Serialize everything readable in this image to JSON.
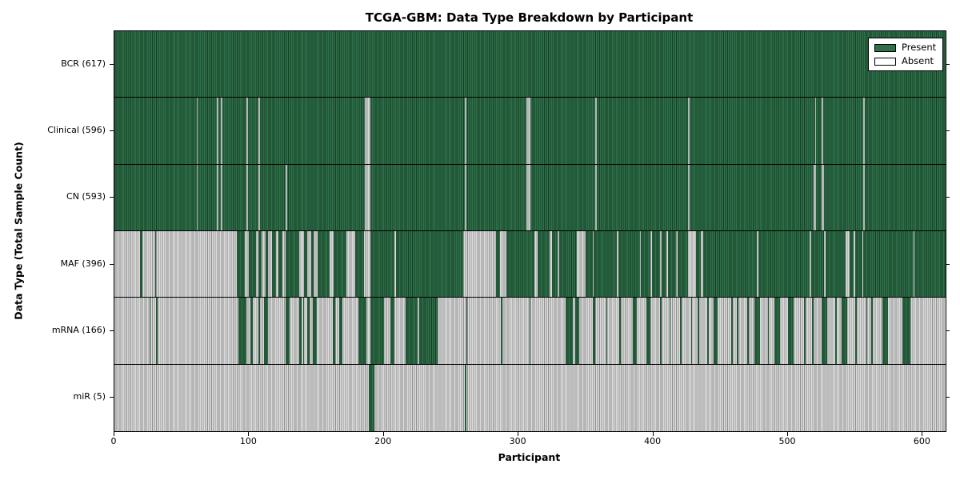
{
  "chart_data": {
    "type": "heatmap",
    "title": "TCGA-GBM: Data Type Breakdown by Participant",
    "xlabel": "Participant",
    "ylabel": "Data Type (Total Sample Count)",
    "xlim": [
      0,
      617
    ],
    "x_ticks": [
      0,
      100,
      200,
      300,
      400,
      500,
      600
    ],
    "grid": false,
    "legend": {
      "position": "upper-right",
      "entries": [
        {
          "label": "Present",
          "color": "#2e7049"
        },
        {
          "label": "Absent",
          "color": "#ffffff"
        }
      ]
    },
    "colors": {
      "present_fill": "#2e7049",
      "present_line": "#173f28",
      "absent_fill": "#dcdcdc",
      "absent_line": "#8f8f8f",
      "border": "#000000"
    },
    "rows": [
      {
        "label": "BCR (617)",
        "data_type": "BCR",
        "total_sample_count": 617,
        "base": "present",
        "opposite_segments": []
      },
      {
        "label": "Clinical (596)",
        "data_type": "Clinical",
        "total_sample_count": 596,
        "base": "present",
        "opposite_segments": [
          [
            61,
            62
          ],
          [
            76,
            77
          ],
          [
            79,
            80
          ],
          [
            98,
            99
          ],
          [
            107,
            108
          ],
          [
            186,
            190
          ],
          [
            260,
            261
          ],
          [
            306,
            309
          ],
          [
            357,
            358
          ],
          [
            426,
            427
          ],
          [
            520,
            521
          ],
          [
            525,
            526
          ],
          [
            556,
            557
          ]
        ]
      },
      {
        "label": "CN (593)",
        "data_type": "CN",
        "total_sample_count": 593,
        "base": "present",
        "opposite_segments": [
          [
            61,
            62
          ],
          [
            76,
            77
          ],
          [
            79,
            80
          ],
          [
            98,
            99
          ],
          [
            107,
            108
          ],
          [
            127,
            128
          ],
          [
            186,
            190
          ],
          [
            260,
            261
          ],
          [
            306,
            309
          ],
          [
            357,
            358
          ],
          [
            426,
            427
          ],
          [
            519,
            521
          ],
          [
            525,
            527
          ],
          [
            556,
            557
          ]
        ]
      },
      {
        "label": "MAF (396)",
        "data_type": "MAF",
        "total_sample_count": 396,
        "base": "absent",
        "opposite_segments": [
          [
            19,
            21
          ],
          [
            30,
            31
          ],
          [
            91,
            97
          ],
          [
            100,
            105
          ],
          [
            107,
            109
          ],
          [
            112,
            114
          ],
          [
            117,
            120
          ],
          [
            122,
            125
          ],
          [
            127,
            137
          ],
          [
            141,
            143
          ],
          [
            146,
            148
          ],
          [
            151,
            160
          ],
          [
            163,
            172
          ],
          [
            179,
            185
          ],
          [
            190,
            208
          ],
          [
            209,
            259
          ],
          [
            283,
            286
          ],
          [
            291,
            312
          ],
          [
            314,
            323
          ],
          [
            325,
            329
          ],
          [
            330,
            343
          ],
          [
            350,
            355
          ],
          [
            356,
            373
          ],
          [
            374,
            390
          ],
          [
            391,
            398
          ],
          [
            399,
            405
          ],
          [
            406,
            410
          ],
          [
            411,
            417
          ],
          [
            418,
            426
          ],
          [
            432,
            435
          ],
          [
            437,
            477
          ],
          [
            478,
            516
          ],
          [
            517,
            527
          ],
          [
            528,
            543
          ],
          [
            546,
            549
          ],
          [
            550,
            555
          ],
          [
            556,
            593
          ],
          [
            594,
            617
          ]
        ]
      },
      {
        "label": "mRNA (166)",
        "data_type": "mRNA",
        "total_sample_count": 166,
        "base": "absent",
        "opposite_segments": [
          [
            26,
            27
          ],
          [
            31,
            32
          ],
          [
            92,
            98
          ],
          [
            101,
            103
          ],
          [
            107,
            108
          ],
          [
            111,
            114
          ],
          [
            127,
            130
          ],
          [
            137,
            139
          ],
          [
            140,
            141
          ],
          [
            143,
            145
          ],
          [
            147,
            150
          ],
          [
            162,
            164
          ],
          [
            167,
            169
          ],
          [
            181,
            187
          ],
          [
            190,
            200
          ],
          [
            205,
            208
          ],
          [
            216,
            225
          ],
          [
            226,
            240
          ],
          [
            261,
            262
          ],
          [
            287,
            288
          ],
          [
            308,
            309
          ],
          [
            335,
            340
          ],
          [
            342,
            345
          ],
          [
            355,
            357
          ],
          [
            365,
            366
          ],
          [
            375,
            376
          ],
          [
            385,
            388
          ],
          [
            395,
            398
          ],
          [
            405,
            406
          ],
          [
            412,
            413
          ],
          [
            420,
            421
          ],
          [
            428,
            429
          ],
          [
            433,
            434
          ],
          [
            440,
            441
          ],
          [
            445,
            448
          ],
          [
            458,
            459
          ],
          [
            462,
            463
          ],
          [
            470,
            471
          ],
          [
            475,
            479
          ],
          [
            485,
            486
          ],
          [
            490,
            494
          ],
          [
            500,
            504
          ],
          [
            512,
            513
          ],
          [
            518,
            519
          ],
          [
            525,
            529
          ],
          [
            535,
            536
          ],
          [
            540,
            544
          ],
          [
            550,
            551
          ],
          [
            558,
            559
          ],
          [
            562,
            563
          ],
          [
            570,
            574
          ],
          [
            585,
            591
          ]
        ]
      },
      {
        "label": "miR (5)",
        "data_type": "miR",
        "total_sample_count": 5,
        "base": "absent",
        "opposite_segments": [
          [
            189,
            193
          ],
          [
            260,
            261
          ]
        ]
      }
    ]
  }
}
